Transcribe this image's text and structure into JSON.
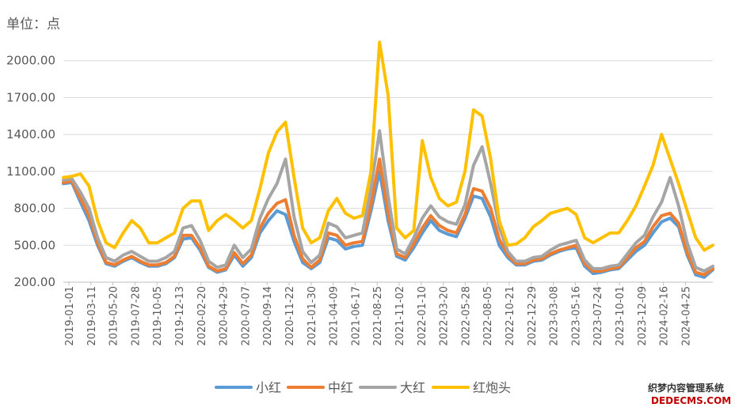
{
  "chart_data": {
    "type": "line",
    "unit_label": "单位：点",
    "ylim": [
      200,
      2300
    ],
    "y_ticks": [
      "200.00",
      "500.00",
      "800.00",
      "1100.00",
      "1400.00",
      "1700.00",
      "2000.00"
    ],
    "x_ticks": [
      "2019-01-01",
      "2019-03-11",
      "2019-05-20",
      "2019-07-28",
      "2019-10-05",
      "2019-12-13",
      "2020-02-20",
      "2020-04-29",
      "2020-07-07",
      "2020-09-14",
      "2020-11-22",
      "2021-01-30",
      "2021-04-09",
      "2021-06-17",
      "2021-08-25",
      "2021-11-02",
      "2022-01-10",
      "2022-03-20",
      "2022-05-28",
      "2022-08-05",
      "2022-10-21",
      "2022-12-29",
      "2023-03-08",
      "2023-05-16",
      "2023-07-24",
      "2023-10-01",
      "2023-12-09",
      "2024-02-16",
      "2024-04-25"
    ],
    "grid": "horizontal",
    "legend_position": "bottom",
    "series": [
      {
        "name": "小红",
        "color": "#5B9BD5",
        "values": [
          1000,
          1010,
          850,
          700,
          500,
          350,
          330,
          370,
          400,
          360,
          330,
          330,
          350,
          400,
          550,
          560,
          460,
          320,
          280,
          300,
          420,
          330,
          400,
          600,
          700,
          780,
          750,
          530,
          360,
          310,
          360,
          560,
          540,
          470,
          490,
          500,
          780,
          1100,
          700,
          410,
          380,
          480,
          600,
          700,
          620,
          590,
          570,
          720,
          900,
          880,
          730,
          500,
          400,
          340,
          340,
          370,
          380,
          420,
          450,
          470,
          480,
          330,
          270,
          280,
          300,
          310,
          380,
          450,
          500,
          600,
          690,
          720,
          650,
          420,
          260,
          240,
          300
        ]
      },
      {
        "name": "中红",
        "color": "#ED7D31",
        "values": [
          1010,
          1020,
          880,
          740,
          520,
          360,
          340,
          380,
          410,
          370,
          340,
          340,
          360,
          410,
          580,
          580,
          480,
          330,
          290,
          310,
          440,
          350,
          420,
          640,
          760,
          840,
          870,
          580,
          390,
          320,
          380,
          600,
          580,
          500,
          520,
          530,
          830,
          1200,
          760,
          430,
          400,
          510,
          640,
          740,
          660,
          620,
          600,
          750,
          960,
          940,
          800,
          550,
          420,
          350,
          350,
          380,
          390,
          430,
          460,
          480,
          500,
          350,
          290,
          290,
          310,
          320,
          400,
          480,
          530,
          650,
          740,
          760,
          680,
          440,
          280,
          260,
          310
        ]
      },
      {
        "name": "大红",
        "color": "#A5A5A5",
        "values": [
          1030,
          1040,
          930,
          800,
          560,
          400,
          370,
          420,
          450,
          410,
          370,
          370,
          400,
          450,
          640,
          660,
          540,
          370,
          320,
          340,
          500,
          400,
          470,
          720,
          880,
          1000,
          1200,
          730,
          450,
          360,
          420,
          680,
          650,
          560,
          580,
          600,
          960,
          1430,
          900,
          470,
          430,
          560,
          720,
          820,
          730,
          690,
          670,
          830,
          1150,
          1300,
          1000,
          650,
          450,
          370,
          370,
          400,
          410,
          460,
          500,
          520,
          540,
          380,
          310,
          310,
          330,
          340,
          430,
          520,
          580,
          730,
          850,
          1050,
          820,
          520,
          320,
          290,
          330
        ]
      },
      {
        "name": "红炮头",
        "color": "#FFC000",
        "values": [
          1050,
          1060,
          1080,
          980,
          700,
          520,
          480,
          600,
          700,
          640,
          520,
          520,
          560,
          600,
          800,
          860,
          860,
          620,
          700,
          750,
          700,
          640,
          700,
          960,
          1250,
          1420,
          1500,
          1050,
          640,
          520,
          560,
          780,
          880,
          760,
          720,
          740,
          1100,
          2150,
          1720,
          640,
          560,
          620,
          1350,
          1050,
          880,
          820,
          850,
          1100,
          1600,
          1550,
          1200,
          700,
          500,
          510,
          560,
          650,
          700,
          760,
          780,
          800,
          750,
          560,
          520,
          560,
          600,
          600,
          700,
          820,
          980,
          1150,
          1400,
          1200,
          1000,
          780,
          560,
          460,
          500
        ]
      }
    ]
  }
}
